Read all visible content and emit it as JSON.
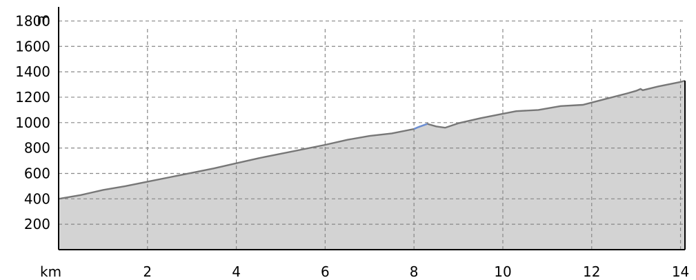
{
  "chart_data": {
    "type": "area",
    "ylabel": "m",
    "xlabel": "km",
    "xlim": [
      0,
      14.1
    ],
    "ylim": [
      0,
      1900
    ],
    "x_ticks": [
      2,
      4,
      6,
      8,
      10,
      12,
      14
    ],
    "y_ticks": [
      200,
      400,
      600,
      800,
      1000,
      1200,
      1400,
      1600,
      1800
    ],
    "x_tick_labels": [
      "2",
      "4",
      "6",
      "8",
      "10",
      "12",
      "14"
    ],
    "y_tick_labels": [
      "200",
      "400",
      "600",
      "800",
      "1000",
      "1200",
      "1400",
      "1600",
      "1800"
    ],
    "grid": true,
    "colors": {
      "fill": "#d3d3d3",
      "line": "#777777",
      "highlight": "#6b8fd6"
    },
    "series": [
      {
        "x": [
          0,
          0.5,
          1,
          1.5,
          2,
          2.5,
          3,
          3.5,
          4,
          4.5,
          5,
          5.5,
          6,
          6.5,
          7,
          7.5,
          8,
          8.1,
          8.3,
          8.5,
          8.7,
          9,
          9.5,
          10,
          10.3,
          10.8,
          11.3,
          11.8,
          12.3,
          12.8,
          13.0,
          13.1,
          13.15,
          13.5,
          14,
          14.1
        ],
        "y": [
          400,
          430,
          470,
          500,
          535,
          570,
          605,
          640,
          680,
          720,
          755,
          790,
          825,
          865,
          895,
          915,
          950,
          965,
          990,
          970,
          960,
          995,
          1035,
          1070,
          1090,
          1100,
          1130,
          1140,
          1185,
          1230,
          1250,
          1265,
          1255,
          1285,
          1320,
          1330
        ]
      }
    ],
    "highlight_range": [
      8.05,
      8.3
    ]
  }
}
